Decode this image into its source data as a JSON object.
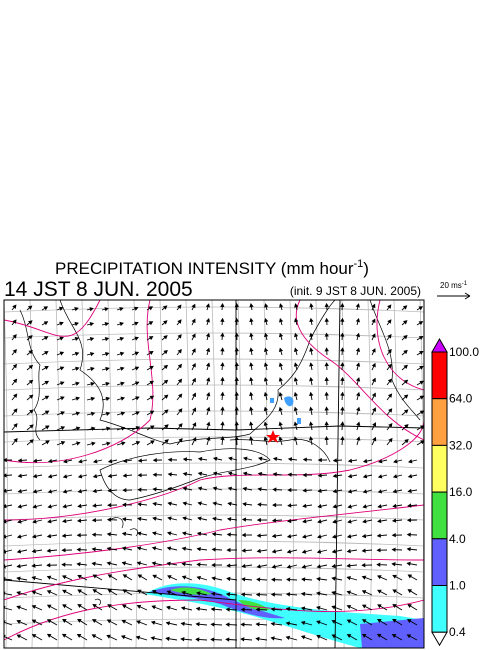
{
  "header": {
    "title": "PRECIPITATION INTENSITY (mm hour",
    "title_exponent": "-1",
    "title_close": ")",
    "valid_time": "14 JST 8 JUN. 2005",
    "init_time": "(init. 9 JST 8 JUN. 2005)"
  },
  "vector_legend": {
    "label": "20 ms",
    "exponent": "-1"
  },
  "color_scale": {
    "levels": [
      "100.0",
      "64.0",
      "32.0",
      "16.0",
      "4.0",
      "1.0",
      "0.4"
    ],
    "colors": [
      "#cc00ff",
      "#ff0000",
      "#ffa040",
      "#ffff60",
      "#40e040",
      "#6060ff",
      "#40ffff",
      "#ffffff"
    ]
  }
}
